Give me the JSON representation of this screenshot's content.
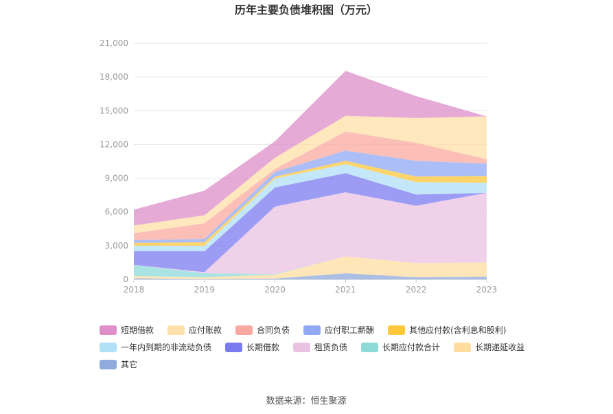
{
  "chart_data": {
    "type": "area",
    "stacked": true,
    "title": "历年主要负债堆积图（万元）",
    "x": [
      "2018",
      "2019",
      "2020",
      "2021",
      "2022",
      "2023"
    ],
    "ylim": [
      0,
      21000
    ],
    "yticks": [
      "0",
      "3,000",
      "6,000",
      "9,000",
      "12,000",
      "15,000",
      "18,000",
      "21,000"
    ],
    "grid": true,
    "legend_position": "bottom",
    "series": [
      {
        "name": "其它",
        "color": "#8FAADC",
        "values": [
          100,
          50,
          80,
          550,
          200,
          250
        ]
      },
      {
        "name": "长期递延收益",
        "color": "#FFDDA0",
        "values": [
          200,
          150,
          350,
          1500,
          1250,
          1250
        ]
      },
      {
        "name": "长期应付款合计",
        "color": "#8ED9D9",
        "values": [
          1000,
          350,
          50,
          0,
          0,
          0
        ]
      },
      {
        "name": "租赁负债",
        "color": "#EAC3E3",
        "values": [
          0,
          100,
          6000,
          5700,
          5100,
          6200
        ]
      },
      {
        "name": "长期借款",
        "color": "#7B7BF0",
        "values": [
          1200,
          1850,
          1700,
          1700,
          1000,
          0
        ]
      },
      {
        "name": "一年内到期的非流动负债",
        "color": "#B0E0F7",
        "values": [
          500,
          500,
          800,
          800,
          1100,
          900
        ]
      },
      {
        "name": "其他应付款(含利息和股利)",
        "color": "#FFC73A",
        "values": [
          250,
          300,
          150,
          300,
          500,
          600
        ]
      },
      {
        "name": "应付职工薪酬",
        "color": "#90A8F5",
        "values": [
          250,
          300,
          450,
          900,
          1400,
          1100
        ]
      },
      {
        "name": "合同负债",
        "color": "#F9A9A0",
        "values": [
          600,
          1400,
          250,
          1700,
          1600,
          400
        ]
      },
      {
        "name": "应付账款",
        "color": "#FFE0A8",
        "values": [
          700,
          700,
          1000,
          1400,
          2200,
          3800
        ]
      },
      {
        "name": "短期借款",
        "color": "#DE8EC8",
        "values": [
          1400,
          2200,
          1450,
          4000,
          1950,
          0
        ]
      }
    ],
    "legend_order": [
      "短期借款",
      "应付账款",
      "合同负债",
      "应付职工薪酬",
      "其他应付款(含利息和股利)",
      "一年内到期的非流动负债",
      "长期借款",
      "租赁负债",
      "长期应付款合计",
      "长期递延收益",
      "其它"
    ]
  },
  "source_text": "数据来源：恒生聚源"
}
